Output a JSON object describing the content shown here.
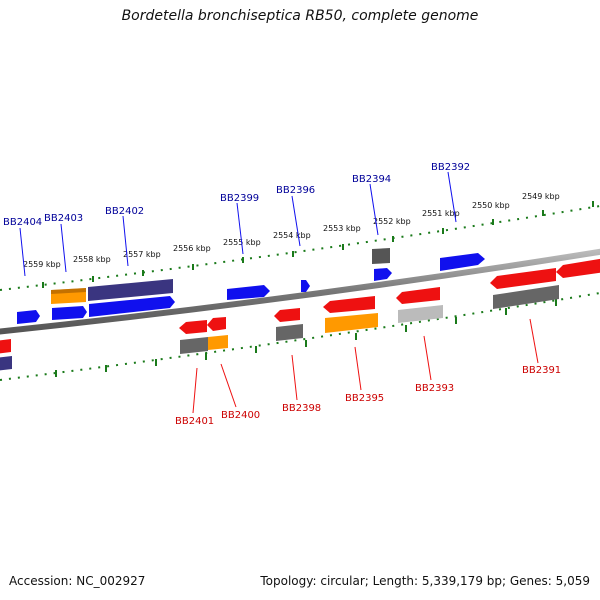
{
  "title": "Bordetella bronchiseptica RB50, complete genome",
  "footer": {
    "accession": "Accession: NC_002927",
    "topology": "Topology: circular; Length: 5,339,179 bp; Genes: 5,059"
  },
  "colors": {
    "forward_label": "#000099",
    "reverse_label": "#cc0000",
    "blue": "#1010ee",
    "navy": "#3a3580",
    "red": "#ee1111",
    "orange": "#ff9900",
    "gray": "#666666",
    "lightgray": "#bbbbbb",
    "tick": "#1a7a1a",
    "backbone": "#777777"
  },
  "scale_labels": [
    "2559 kbp",
    "2558 kbp",
    "2557 kbp",
    "2556 kbp",
    "2555 kbp",
    "2554 kbp",
    "2553 kbp",
    "2552 kbp",
    "2551 kbp",
    "2550 kbp",
    "2549 kbp"
  ],
  "gene_labels_forward": [
    "BB2404",
    "BB2403",
    "BB2402",
    "BB2399",
    "BB2396",
    "BB2394",
    "BB2392"
  ],
  "gene_labels_reverse": [
    "BB2401",
    "BB2400",
    "BB2398",
    "BB2395",
    "BB2393",
    "BB2391"
  ]
}
